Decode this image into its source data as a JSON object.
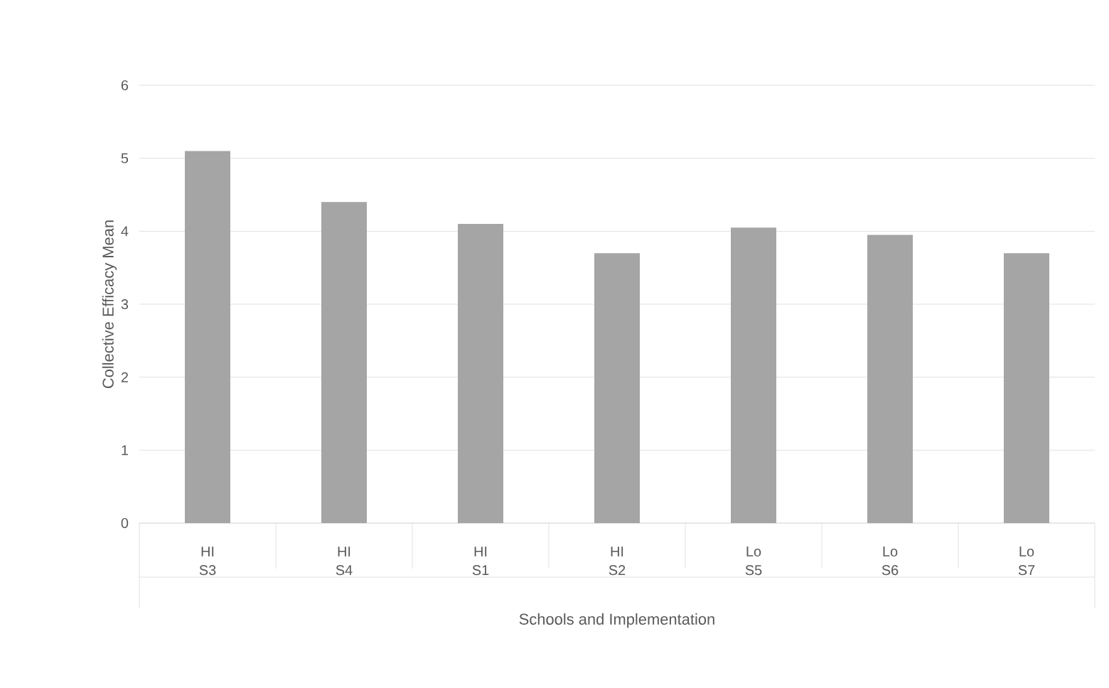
{
  "chart_data": {
    "type": "bar",
    "xlabel": "Schools and Implementation",
    "ylabel": "Collective Efficacy Mean",
    "categories": [
      "S3",
      "S4",
      "S1",
      "S2",
      "S5",
      "S6",
      "S7"
    ],
    "values": [
      5.1,
      4.4,
      4.1,
      3.7,
      4.05,
      3.95,
      3.7
    ],
    "color": "#a5a5a5",
    "ylim": [
      0,
      6
    ],
    "yticks": [
      0,
      1,
      2,
      3,
      4,
      5,
      6
    ],
    "grid": "y",
    "annotations": [
      "HI",
      "HI",
      "HI",
      "HI",
      "Lo",
      "Lo",
      "Lo"
    ]
  }
}
